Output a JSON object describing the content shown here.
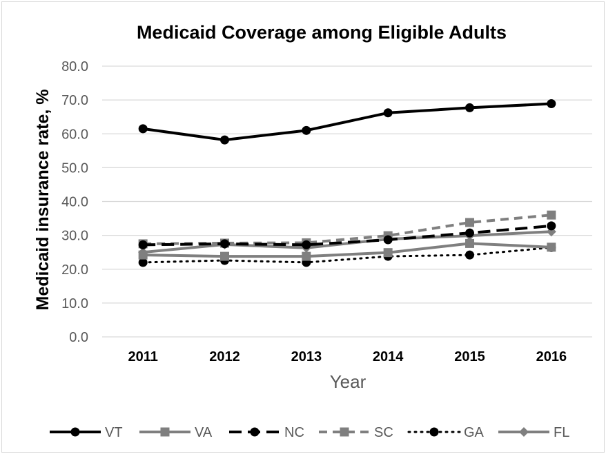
{
  "chart_data": {
    "type": "line",
    "title": "Medicaid Coverage among Eligible Adults",
    "xlabel": "Year",
    "ylabel": "Medicaid insurance rate, %",
    "categories": [
      "2011",
      "2012",
      "2013",
      "2014",
      "2015",
      "2016"
    ],
    "ylim": [
      0,
      80
    ],
    "yticks": [
      "0.0",
      "10.0",
      "20.0",
      "30.0",
      "40.0",
      "50.0",
      "60.0",
      "70.0",
      "80.0"
    ],
    "grid": true,
    "legend_position": "bottom",
    "series": [
      {
        "name": "VT",
        "values": [
          61.5,
          58.2,
          61.0,
          66.2,
          67.7,
          68.9
        ],
        "color": "#000000",
        "dash": "solid",
        "marker": "circle",
        "width": 4
      },
      {
        "name": "VA",
        "values": [
          24.2,
          23.8,
          23.8,
          24.9,
          27.6,
          26.5
        ],
        "color": "#7f7f7f",
        "dash": "solid",
        "marker": "square",
        "width": 4
      },
      {
        "name": "NC",
        "values": [
          27.2,
          27.5,
          27.2,
          28.7,
          30.7,
          32.8
        ],
        "color": "#000000",
        "dash": "long-dash",
        "marker": "circle",
        "width": 4
      },
      {
        "name": "SC",
        "values": [
          27.5,
          27.7,
          27.8,
          29.9,
          33.8,
          36.0
        ],
        "color": "#7f7f7f",
        "dash": "dash",
        "marker": "square",
        "width": 4
      },
      {
        "name": "GA",
        "values": [
          22.0,
          22.6,
          22.0,
          23.8,
          24.2,
          26.4
        ],
        "color": "#000000",
        "dash": "dot",
        "marker": "circle",
        "width": 3
      },
      {
        "name": "FL",
        "values": [
          25.0,
          27.3,
          26.3,
          28.9,
          29.9,
          31.1
        ],
        "color": "#7f7f7f",
        "dash": "solid",
        "marker": "diamond",
        "width": 4
      }
    ]
  }
}
